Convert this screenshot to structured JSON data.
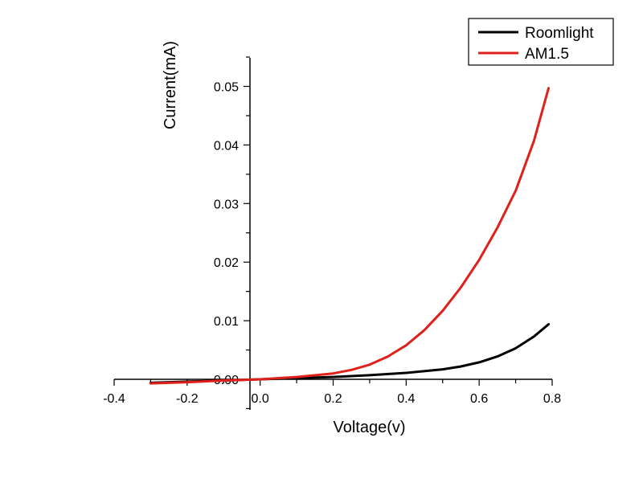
{
  "chart_data": {
    "type": "line",
    "xlabel": "Voltage(v)",
    "ylabel": "Current(mA)",
    "xlim": [
      -0.4,
      0.8
    ],
    "ylim": [
      0.0,
      0.05
    ],
    "x_ticks": [
      "-0.4",
      "-0.2",
      "0.0",
      "0.2",
      "0.4",
      "0.6",
      "0.8"
    ],
    "y_ticks": [
      "0.00",
      "0.01",
      "0.02",
      "0.03",
      "0.04",
      "0.05"
    ],
    "grid": false,
    "legend_position": "top-right",
    "series": [
      {
        "name": "Roomlight",
        "color": "#000000",
        "x": [
          -0.3,
          -0.2,
          -0.1,
          0.0,
          0.1,
          0.2,
          0.3,
          0.4,
          0.5,
          0.55,
          0.6,
          0.65,
          0.7,
          0.75,
          0.79
        ],
        "y": [
          -0.0006,
          -0.0004,
          -0.0002,
          0.0,
          0.0002,
          0.0004,
          0.0007,
          0.0011,
          0.0017,
          0.0022,
          0.0029,
          0.0039,
          0.0053,
          0.0073,
          0.0094
        ]
      },
      {
        "name": "AM1.5",
        "color": "#e0201b",
        "x": [
          -0.3,
          -0.2,
          -0.1,
          0.0,
          0.1,
          0.2,
          0.25,
          0.3,
          0.35,
          0.4,
          0.45,
          0.5,
          0.55,
          0.6,
          0.65,
          0.7,
          0.75,
          0.79
        ],
        "y": [
          -0.0007,
          -0.0005,
          -0.0002,
          0.0,
          0.0004,
          0.001,
          0.0016,
          0.0025,
          0.0039,
          0.0058,
          0.0084,
          0.0117,
          0.0157,
          0.0204,
          0.0259,
          0.0322,
          0.0407,
          0.0497
        ]
      }
    ]
  }
}
